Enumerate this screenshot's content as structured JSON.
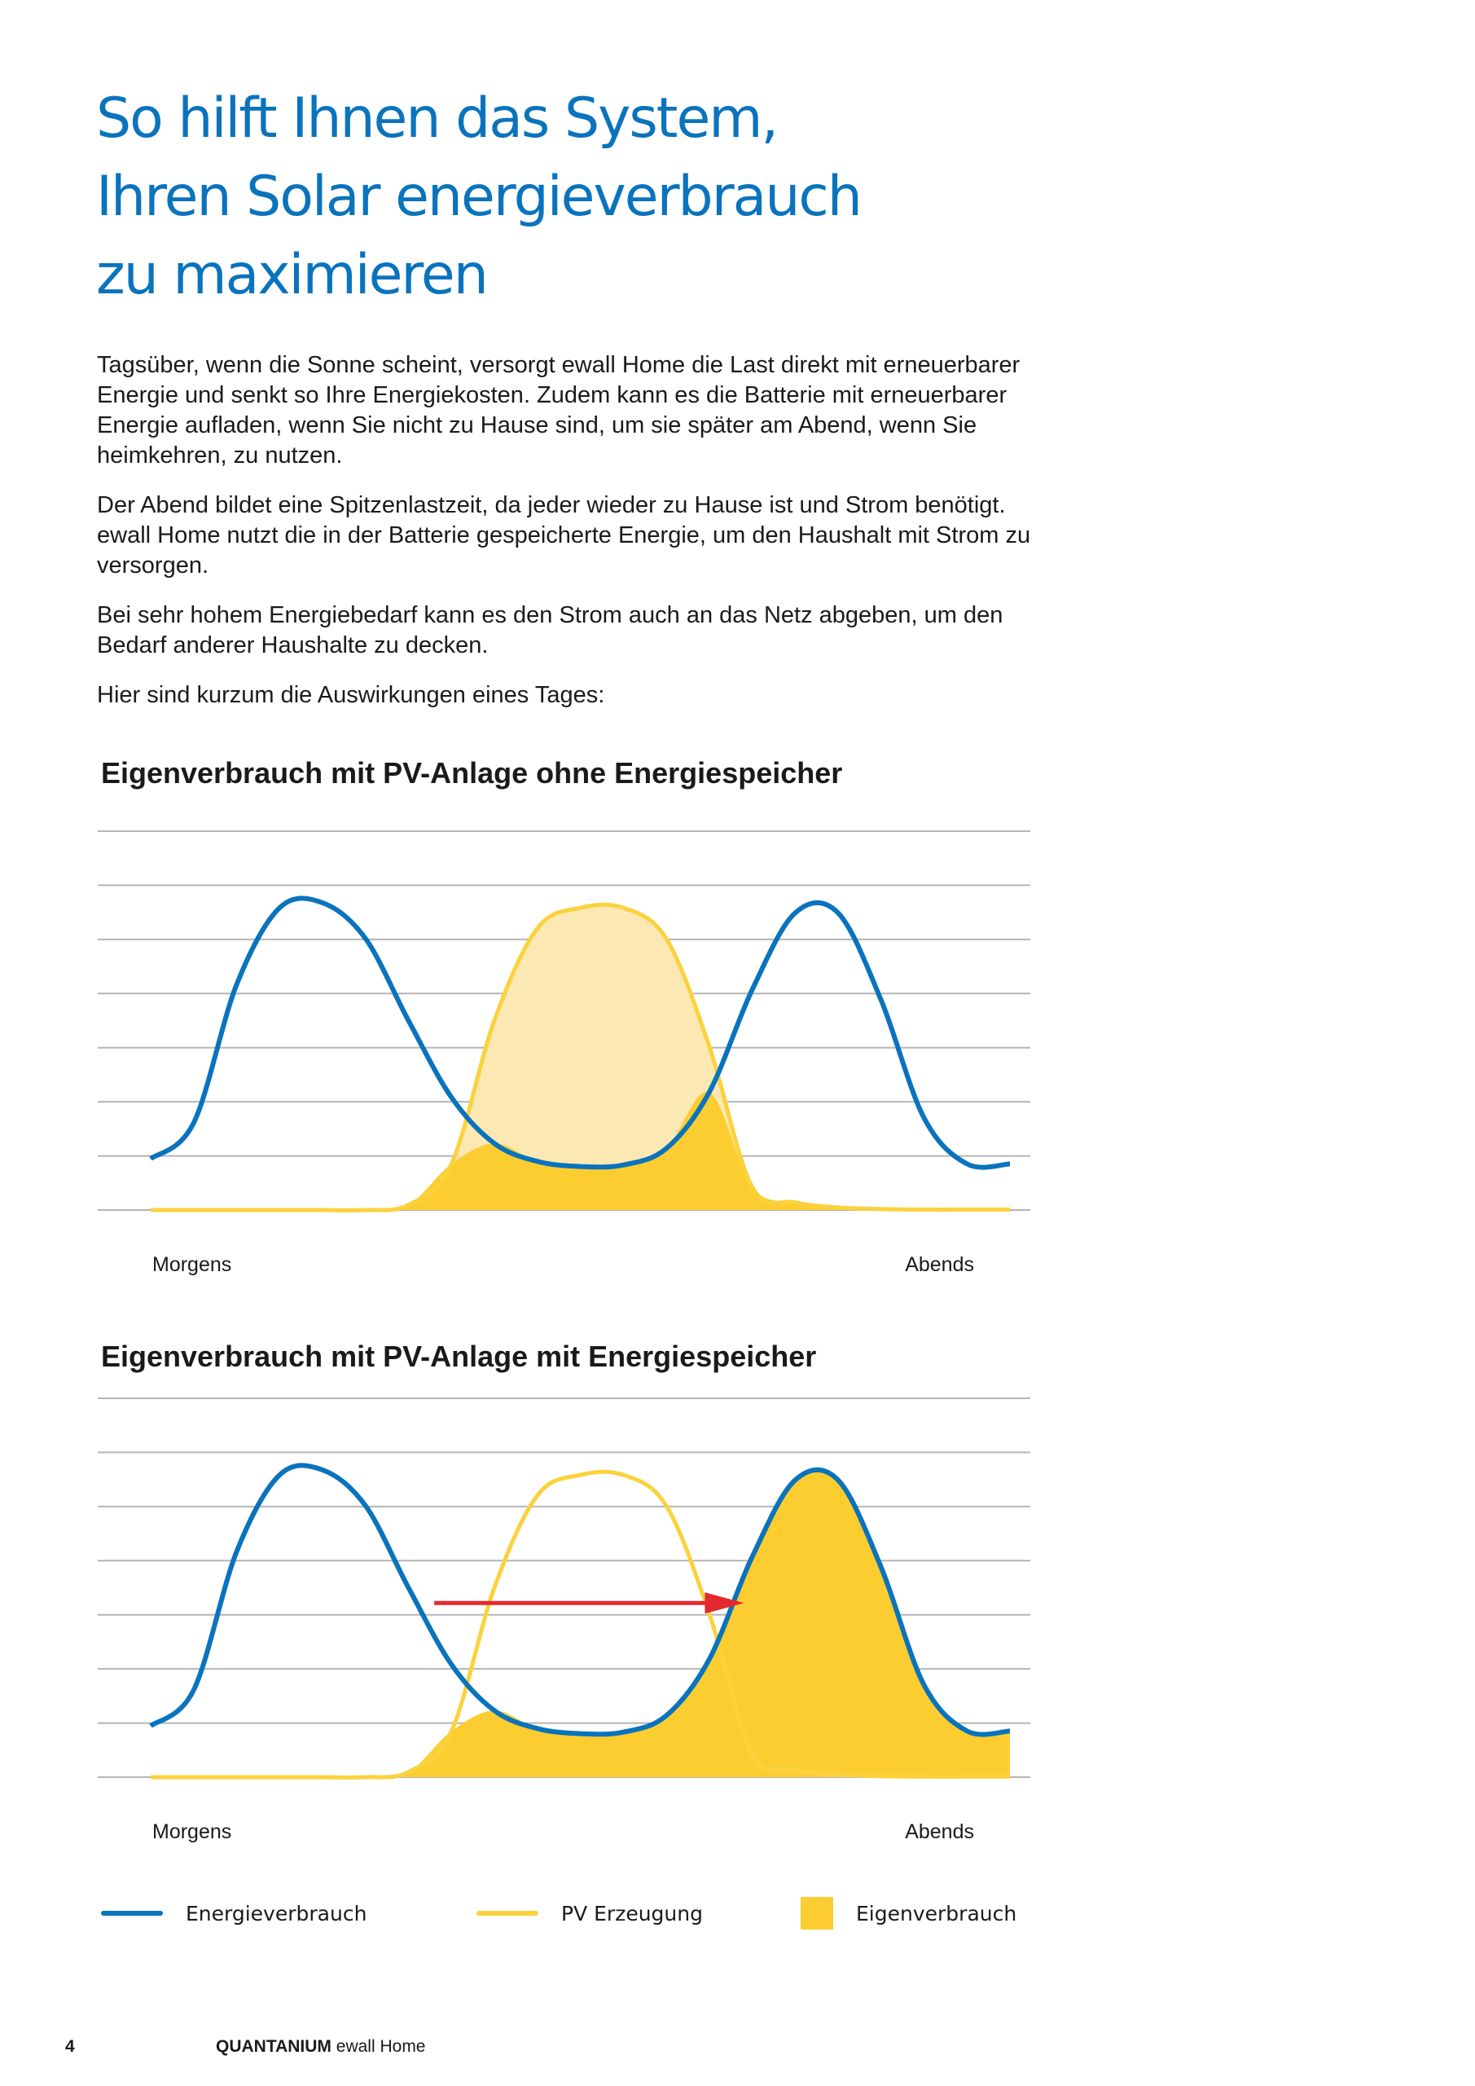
{
  "heading": {
    "line1": "So hilft Ihnen das System,",
    "line2": "Ihren Solar energieverbrauch",
    "line3": "zu maximieren"
  },
  "intro": {
    "p1": "Tagsüber, wenn die Sonne scheint, versorgt ewall Home die Last direkt mit erneuerbarer Energie und senkt so Ihre Energiekosten. Zudem kann es die Batterie mit erneuerbarer Energie aufladen, wenn Sie nicht zu Hause sind, um sie später am Abend, wenn Sie heimkehren, zu nutzen.",
    "p2": "Der Abend bildet eine Spitzenlastzeit, da jeder wieder zu Hause ist und Strom benötigt. ewall Home nutzt die in der Batterie gespeicherte Energie, um den Haushalt mit Strom zu versorgen.",
    "p3": "Bei sehr hohem Energiebedarf kann es den Strom auch an das Netz abgeben, um den Bedarf anderer Haushalte zu decken.",
    "p4": "Hier sind kurzum die Auswirkungen eines Tages:"
  },
  "colors": {
    "consumption": "#0a73bd",
    "pv": "#fbd23c",
    "pv_fill_light": "#fce8b3",
    "self_consumption": "#fccd30",
    "arrow": "#e3292f",
    "grid": "#b5b5b5"
  },
  "chart_data": [
    {
      "type": "area",
      "title": "Eigenverbrauch mit PV-Anlage ohne Energiespeicher",
      "xlabel_start": "Morgens",
      "xlabel_end": "Abends",
      "grid": true,
      "y_axis_values_shown": false,
      "x": [
        0,
        0.05,
        0.1,
        0.15,
        0.2,
        0.25,
        0.3,
        0.35,
        0.4,
        0.45,
        0.5,
        0.55,
        0.6,
        0.65,
        0.7,
        0.75,
        0.8,
        0.85,
        0.9,
        0.95,
        1.0
      ],
      "series": [
        {
          "name": "Energieverbrauch",
          "values": [
            1.0,
            1.7,
            4.4,
            5.9,
            6.0,
            5.3,
            3.7,
            2.2,
            1.3,
            0.95,
            0.85,
            0.88,
            1.2,
            2.3,
            4.3,
            5.8,
            5.8,
            4.1,
            1.8,
            0.9,
            0.9
          ]
        },
        {
          "name": "PV Erzeugung",
          "values": [
            0,
            0,
            0,
            0,
            0,
            0,
            0.1,
            0.9,
            3.7,
            5.5,
            5.9,
            5.9,
            5.3,
            3.2,
            0.45,
            0.15,
            0.05,
            0.02,
            0.01,
            0.01,
            0.01
          ]
        }
      ],
      "shaded": {
        "name": "Eigenverbrauch",
        "rule": "min(PV Erzeugung, Energieverbrauch)"
      }
    },
    {
      "type": "area",
      "title": "Eigenverbrauch mit PV-Anlage mit Energiespeicher",
      "xlabel_start": "Morgens",
      "xlabel_end": "Abends",
      "grid": true,
      "y_axis_values_shown": false,
      "arrow": "from midday PV peak to evening consumption peak",
      "x": [
        0,
        0.05,
        0.1,
        0.15,
        0.2,
        0.25,
        0.3,
        0.35,
        0.4,
        0.45,
        0.5,
        0.55,
        0.6,
        0.65,
        0.7,
        0.75,
        0.8,
        0.85,
        0.9,
        0.95,
        1.0
      ],
      "series": [
        {
          "name": "Energieverbrauch",
          "values": [
            1.0,
            1.7,
            4.4,
            5.9,
            6.0,
            5.3,
            3.7,
            2.2,
            1.3,
            0.95,
            0.85,
            0.88,
            1.2,
            2.3,
            4.3,
            5.8,
            5.8,
            4.1,
            1.8,
            0.9,
            0.9
          ]
        },
        {
          "name": "PV Erzeugung",
          "values": [
            0,
            0,
            0,
            0,
            0,
            0,
            0.1,
            0.9,
            3.7,
            5.5,
            5.9,
            5.9,
            5.3,
            3.2,
            0.45,
            0.15,
            0.05,
            0.02,
            0.01,
            0.01,
            0.01
          ]
        }
      ],
      "shaded": {
        "name": "Eigenverbrauch",
        "rule": "midday: min(PV Erzeugung, Energieverbrauch); evening: Energieverbrauch covered by battery"
      }
    }
  ],
  "legend": {
    "consumption": "Energieverbrauch",
    "pv": "PV Erzeugung",
    "self_consumption": "Eigenverbrauch"
  },
  "footer": {
    "page_number": "4",
    "brand": "QUANTANIUM",
    "product": "ewall Home"
  }
}
